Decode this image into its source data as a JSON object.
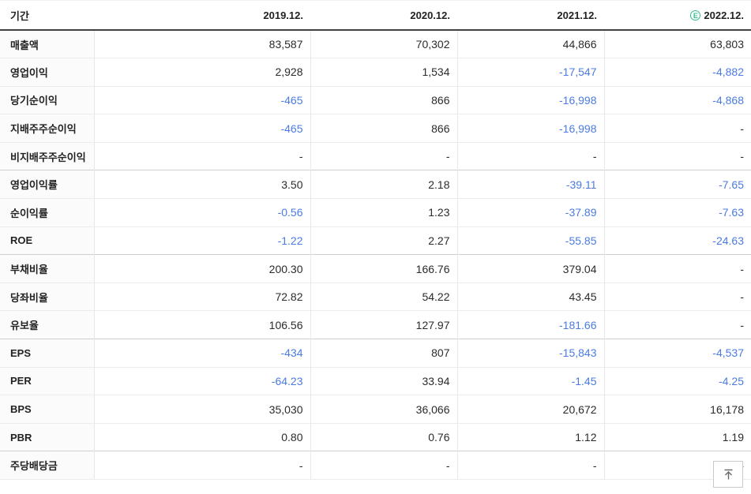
{
  "table": {
    "header": {
      "period_label": "기간",
      "columns": [
        "2019.12.",
        "2020.12.",
        "2021.12.",
        "2022.12."
      ],
      "estimate_badge": "E",
      "estimate_column_index": 3
    },
    "rows": [
      {
        "label": "매출액",
        "values": [
          "83,587",
          "70,302",
          "44,866",
          "63,803"
        ]
      },
      {
        "label": "영업이익",
        "values": [
          "2,928",
          "1,534",
          "-17,547",
          "-4,882"
        ]
      },
      {
        "label": "당기순이익",
        "values": [
          "-465",
          "866",
          "-16,998",
          "-4,868"
        ]
      },
      {
        "label": "지배주주순이익",
        "values": [
          "-465",
          "866",
          "-16,998",
          "-"
        ]
      },
      {
        "label": "비지배주주순이익",
        "values": [
          "-",
          "-",
          "-",
          "-"
        ]
      },
      {
        "label": "영업이익률",
        "values": [
          "3.50",
          "2.18",
          "-39.11",
          "-7.65"
        ]
      },
      {
        "label": "순이익률",
        "values": [
          "-0.56",
          "1.23",
          "-37.89",
          "-7.63"
        ]
      },
      {
        "label": "ROE",
        "values": [
          "-1.22",
          "2.27",
          "-55.85",
          "-24.63"
        ]
      },
      {
        "label": "부채비율",
        "values": [
          "200.30",
          "166.76",
          "379.04",
          "-"
        ]
      },
      {
        "label": "당좌비율",
        "values": [
          "72.82",
          "54.22",
          "43.45",
          "-"
        ]
      },
      {
        "label": "유보율",
        "values": [
          "106.56",
          "127.97",
          "-181.66",
          "-"
        ]
      },
      {
        "label": "EPS",
        "values": [
          "-434",
          "807",
          "-15,843",
          "-4,537"
        ]
      },
      {
        "label": "PER",
        "values": [
          "-64.23",
          "33.94",
          "-1.45",
          "-4.25"
        ]
      },
      {
        "label": "BPS",
        "values": [
          "35,030",
          "36,066",
          "20,672",
          "16,178"
        ]
      },
      {
        "label": "PBR",
        "values": [
          "0.80",
          "0.76",
          "1.12",
          "1.19"
        ]
      },
      {
        "label": "주당배당금",
        "values": [
          "-",
          "-",
          "-",
          "-"
        ]
      }
    ],
    "group_start_rows": [
      5,
      8,
      11,
      15
    ]
  },
  "colors": {
    "negative_value": "#4b7be2",
    "estimate_green": "#34bd8c",
    "header_border": "#404042",
    "group_border": "#cfcfcf",
    "row_border": "#ececec"
  }
}
